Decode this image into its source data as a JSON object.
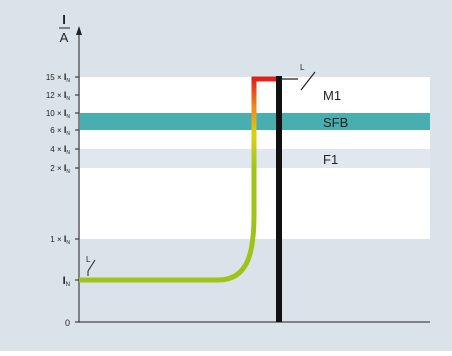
{
  "axis": {
    "y_label_top": "I",
    "y_label_bottom": "A",
    "ticks": [
      {
        "key": "t15",
        "num": "15 ×",
        "sym": "I",
        "sub": "N"
      },
      {
        "key": "t12",
        "num": "12 ×",
        "sym": "I",
        "sub": "N"
      },
      {
        "key": "t10",
        "num": "10 ×",
        "sym": "I",
        "sub": "N"
      },
      {
        "key": "t6",
        "num": "6 ×",
        "sym": "I",
        "sub": "N"
      },
      {
        "key": "t4",
        "num": "4 ×",
        "sym": "I",
        "sub": "N"
      },
      {
        "key": "t2",
        "num": "2 ×",
        "sym": "I",
        "sub": "N"
      },
      {
        "key": "t1",
        "num": "1 ×",
        "sym": "I",
        "sub": "N"
      },
      {
        "key": "tIN",
        "num": "",
        "sym": "I",
        "sub": "N"
      },
      {
        "key": "t0",
        "num": "0",
        "sym": "",
        "sub": ""
      }
    ]
  },
  "bands": {
    "m1": "M1",
    "sfb": "SFB",
    "f1": "F1"
  },
  "switch_symbols": {
    "top": "L",
    "bottom_left": "L"
  },
  "colors": {
    "background": "#dbe3ea",
    "band_white": "#ffffff",
    "band_sfb": "#48aeb0",
    "band_f1": "#e0e7ee",
    "curve_green": "#9ec41a",
    "curve_yellow": "#d8d21a",
    "curve_orange": "#f08a1e",
    "curve_red": "#e0201a",
    "bar_black": "#111111"
  }
}
